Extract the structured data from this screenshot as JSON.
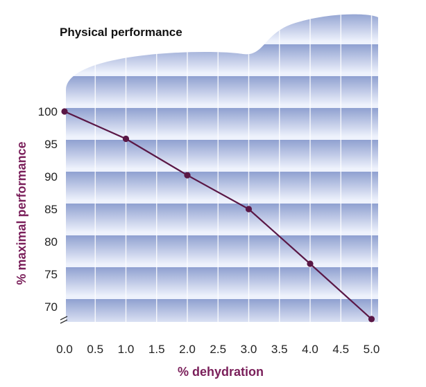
{
  "chart_data": {
    "type": "line",
    "title": "Physical performance",
    "xlabel": "% dehydration",
    "ylabel": "% maximal performance",
    "x": [
      0,
      1,
      2,
      3,
      4,
      5
    ],
    "y": [
      100,
      95.8,
      90.2,
      85,
      76.6,
      68.1
    ],
    "x_ticks": [
      "0.0",
      "0.5",
      "1.0",
      "1.5",
      "2.0",
      "2.5",
      "3.0",
      "3.5",
      "4.0",
      "4.5",
      "5.0"
    ],
    "y_ticks": [
      "100",
      "95",
      "90",
      "85",
      "80",
      "75",
      "70"
    ],
    "xlim": [
      0,
      5
    ],
    "ylim": [
      67,
      104
    ],
    "y_axis_break": true,
    "grid": true,
    "colors": {
      "line": "#5a1745",
      "axis_label": "#7a1f5a",
      "band_dark": "#8fa0d0",
      "band_light": "#eef2fc",
      "grid": "#ffffff"
    }
  }
}
